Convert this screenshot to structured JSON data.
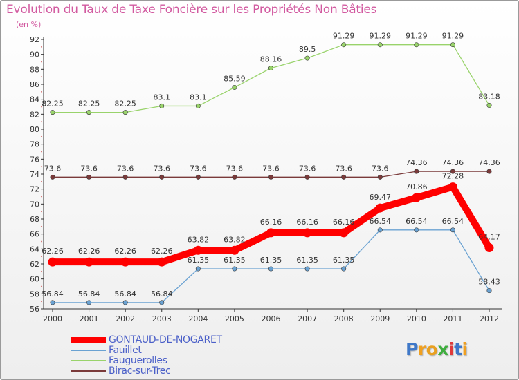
{
  "chart_data": {
    "type": "line",
    "title": "Evolution du Taux de Taxe Foncière sur les Propriétés Non Bâties",
    "unit_label": "(en %)",
    "xlabel": "",
    "ylabel": "(en %)",
    "x": [
      "2000",
      "2001",
      "2002",
      "2003",
      "2004",
      "2005",
      "2006",
      "2007",
      "2008",
      "2009",
      "2010",
      "2011",
      "2012"
    ],
    "ylim": [
      56,
      92
    ],
    "yticks": [
      56,
      58,
      60,
      62,
      64,
      66,
      68,
      70,
      72,
      74,
      76,
      78,
      80,
      82,
      84,
      86,
      88,
      90,
      92
    ],
    "grid": false,
    "legend_position": "bottom-left",
    "series": [
      {
        "name": "GONTAUD-DE-NOGARET",
        "color": "#ff0000",
        "emphasis": "thick",
        "values": [
          62.26,
          62.26,
          62.26,
          62.26,
          63.82,
          63.82,
          66.16,
          66.16,
          66.16,
          69.47,
          70.86,
          72.28,
          64.17
        ],
        "labels": [
          "62.26",
          "62.26",
          "62.26",
          "62.26",
          "63.82",
          "63.82",
          "66.16",
          "66.16",
          "66.16",
          "69.47",
          "70.86",
          "72.28",
          "64.17"
        ]
      },
      {
        "name": "Fauillet",
        "color": "#6aa2d2",
        "emphasis": "normal",
        "values": [
          56.84,
          56.84,
          56.84,
          56.84,
          61.35,
          61.35,
          61.35,
          61.35,
          61.35,
          66.54,
          66.54,
          66.54,
          58.43
        ],
        "labels": [
          "56.84",
          "56.84",
          "56.84",
          "56.84",
          "61.35",
          "61.35",
          "61.35",
          "61.35",
          "61.35",
          "66.54",
          "66.54",
          "66.54",
          "58.43"
        ]
      },
      {
        "name": "Fauguerolles",
        "color": "#99d36b",
        "emphasis": "normal",
        "values": [
          82.25,
          82.25,
          82.25,
          83.1,
          83.1,
          85.59,
          88.16,
          89.5,
          91.29,
          91.29,
          91.29,
          91.29,
          83.18
        ],
        "labels": [
          "82.25",
          "82.25",
          "82.25",
          "83.1",
          "83.1",
          "85.59",
          "88.16",
          "89.5",
          "91.29",
          "91.29",
          "91.29",
          "91.29",
          "83.18"
        ]
      },
      {
        "name": "Birac-sur-Trec",
        "color": "#7a3a3a",
        "emphasis": "normal",
        "values": [
          73.6,
          73.6,
          73.6,
          73.6,
          73.6,
          73.6,
          73.6,
          73.6,
          73.6,
          73.6,
          74.36,
          74.36,
          74.36
        ],
        "labels": [
          "73.6",
          "73.6",
          "73.6",
          "73.6",
          "73.6",
          "73.6",
          "73.6",
          "73.6",
          "73.6",
          "73.6",
          "74.36",
          "74.36",
          "74.36"
        ]
      }
    ]
  },
  "branding": {
    "logo_letters": [
      "P",
      "r",
      "o",
      "x",
      "i",
      "t",
      "i"
    ],
    "logo_colors": [
      "#3f78c8",
      "#f0a020",
      "#e8a020",
      "#3fae3f",
      "#e03a3a",
      "#3f78c8",
      "#f0a020"
    ]
  }
}
